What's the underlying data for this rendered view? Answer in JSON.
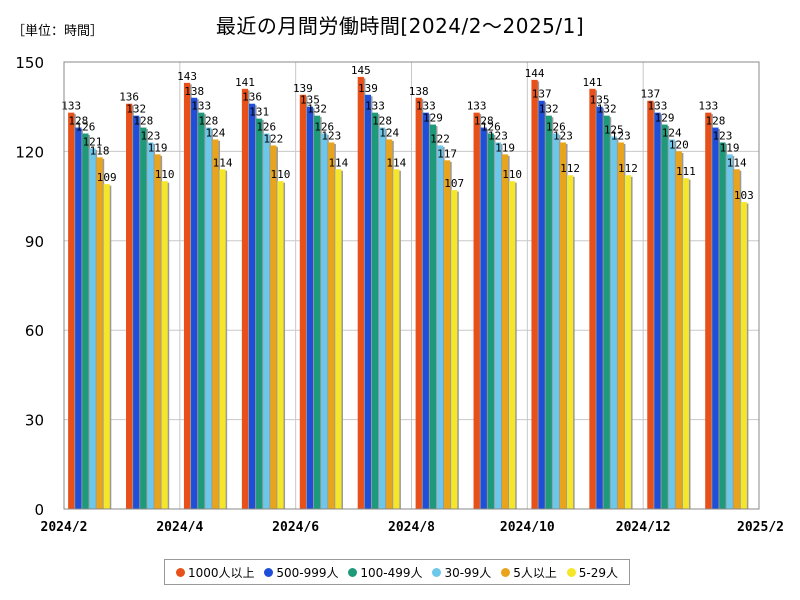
{
  "unit_label": "［単位：時間］",
  "chart_data": {
    "type": "bar",
    "title": "最近の月間労働時間[2024/2～2025/1]",
    "ylim": [
      0,
      150
    ],
    "yticks": [
      0,
      30,
      60,
      90,
      120,
      150
    ],
    "grid": true,
    "legend_position": "bottom",
    "categories": [
      "2024/2",
      "2024/3",
      "2024/4",
      "2024/5",
      "2024/6",
      "2024/7",
      "2024/8",
      "2024/9",
      "2024/10",
      "2024/11",
      "2024/12",
      "2025/1"
    ],
    "xtick_labels": [
      {
        "label": "2024/2",
        "pos": 0
      },
      {
        "label": "2024/4",
        "pos": 2
      },
      {
        "label": "2024/6",
        "pos": 4
      },
      {
        "label": "2024/8",
        "pos": 6
      },
      {
        "label": "2024/10",
        "pos": 8
      },
      {
        "label": "2024/12",
        "pos": 10
      },
      {
        "label": "2025/2",
        "pos": 12
      }
    ],
    "series": [
      {
        "name": "1000人以上",
        "color": "#e8501a",
        "values": [
          133,
          136,
          143,
          141,
          139,
          145,
          138,
          133,
          144,
          141,
          137,
          133
        ]
      },
      {
        "name": "500-999人",
        "color": "#1f4fd8",
        "values": [
          128,
          132,
          138,
          136,
          135,
          139,
          133,
          128,
          137,
          135,
          133,
          128
        ]
      },
      {
        "name": "100-499人",
        "color": "#1e9a7a",
        "values": [
          126,
          128,
          133,
          131,
          132,
          133,
          129,
          126,
          132,
          132,
          129,
          123
        ]
      },
      {
        "name": "30-99人",
        "color": "#6cc8ea",
        "values": [
          121,
          123,
          128,
          126,
          126,
          128,
          122,
          123,
          126,
          125,
          124,
          119
        ]
      },
      {
        "name": "5人以上",
        "color": "#e8a41c",
        "values": [
          118,
          119,
          124,
          122,
          123,
          124,
          117,
          119,
          123,
          123,
          120,
          114
        ]
      },
      {
        "name": "5-29人",
        "color": "#f5e62a",
        "values": [
          109,
          110,
          114,
          110,
          114,
          114,
          107,
          110,
          112,
          112,
          111,
          103
        ]
      }
    ]
  }
}
